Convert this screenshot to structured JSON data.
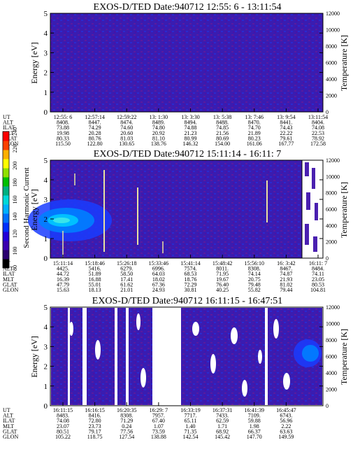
{
  "colorbar": {
    "label": "Second Harmonic Current",
    "ticks": [
      "80",
      "100",
      "120",
      "140",
      "160",
      "180",
      "200",
      "220",
      "240"
    ],
    "colors": [
      "#000000",
      "#2a0070",
      "#3a00b0",
      "#2200d8",
      "#0030ff",
      "#0070ff",
      "#00b0ff",
      "#00d8d8",
      "#00b080",
      "#00c000",
      "#90e000",
      "#ffff00",
      "#ffb000",
      "#ff4000",
      "#ff0000"
    ]
  },
  "chart_data": [
    {
      "type": "heatmap",
      "title": "EXOS-D/TED   Date:940712  12:55: 6 - 13:11:54",
      "ylabel": "Energy [eV]",
      "y2label": "Temperature [K]",
      "ylim": [
        0,
        5
      ],
      "y2lim": [
        0,
        12000
      ],
      "yticks": [
        "0",
        "1",
        "2",
        "3",
        "4",
        "5"
      ],
      "y2ticks": [
        "0",
        "2000",
        "4000",
        "6000",
        "8000",
        "10000",
        "12000"
      ],
      "background": "#3a1cb0",
      "table": {
        "rows": [
          "UT",
          "ALT",
          "ILAT",
          "MLT",
          "GLAT",
          "GLON"
        ],
        "columns": [
          [
            "12:55: 6",
            "8408.",
            "73.88",
            "19.98",
            "80.33",
            "115.50"
          ],
          [
            "12:57:14",
            "8447.",
            "74.29",
            "20.28",
            "80.76",
            "122.80"
          ],
          [
            "12:59:22",
            "8474.",
            "74.60",
            "20.60",
            "81.03",
            "130.65"
          ],
          [
            "13: 1:30",
            "8489.",
            "74.80",
            "20.92",
            "81.10",
            "138.76"
          ],
          [
            "13: 3:30",
            "8494.",
            "74.88",
            "21.23",
            "80.99",
            "146.32"
          ],
          [
            "13: 5:38",
            "8488.",
            "74.85",
            "21.56",
            "80.69",
            "154.00"
          ],
          [
            "13: 7:46",
            "8470.",
            "74.70",
            "21.89",
            "80.23",
            "161.06"
          ],
          [
            "13: 9:54",
            "8441.",
            "74.43",
            "22.22",
            "79.61",
            "167.77"
          ],
          [
            "13:11:54",
            "8404.",
            "74.08",
            "22.53",
            "78.92",
            "172.58"
          ]
        ]
      }
    },
    {
      "type": "heatmap",
      "title": "EXOS-D/TED   Date:940712  15:11:14 - 16:11: 7",
      "ylabel": "Energy [eV]",
      "y2label": "Temperature [K]",
      "ylim": [
        0,
        5
      ],
      "y2lim": [
        0,
        12000
      ],
      "yticks": [
        "0",
        "1",
        "2",
        "3",
        "4",
        "5"
      ],
      "y2ticks": [
        "0",
        "2000",
        "4000",
        "6000",
        "8000",
        "10000",
        "12000"
      ],
      "background": "#3a1cb0",
      "table": {
        "rows": [
          "UT",
          "ALT",
          "ILAT",
          "MLT",
          "GLAT",
          "GLON"
        ],
        "columns": [
          [
            "15:11:14",
            "4425.",
            "44.72",
            "16.39",
            "47.79",
            "15.63"
          ],
          [
            "15:18:46",
            "5416.",
            "51.89",
            "16.88",
            "55.01",
            "18.13"
          ],
          [
            "15:26:18",
            "6279.",
            "58.50",
            "17.41",
            "61.62",
            "21.01"
          ],
          [
            "15:33:46",
            "6996.",
            "64.03",
            "18.02",
            "67.36",
            "24.93"
          ],
          [
            "15:41:14",
            "7574.",
            "68.53",
            "18.76",
            "72.29",
            "30.81"
          ],
          [
            "15:48:42",
            "8011.",
            "71.95",
            "19.67",
            "76.40",
            "40.25"
          ],
          [
            "15:56:10",
            "8308.",
            "74.14",
            "20.75",
            "79.48",
            "55.82"
          ],
          [
            "16: 3:42",
            "8467.",
            "74.87",
            "21.93",
            "81.02",
            "79.44"
          ],
          [
            "16:11: 7",
            "8484.",
            "74.11",
            "23.05",
            "80.53",
            "104.81"
          ]
        ]
      }
    },
    {
      "type": "heatmap",
      "title": "EXOS-D/TED   Date:940712  16:11:15 - 16:47:51",
      "ylabel": "Energy [eV]",
      "y2label": "Temperature [K]",
      "ylim": [
        0,
        5
      ],
      "y2lim": [
        0,
        12000
      ],
      "yticks": [
        "0",
        "1",
        "2",
        "3",
        "4",
        "5"
      ],
      "y2ticks": [
        "0",
        "2000",
        "4000",
        "6000",
        "8000",
        "10000",
        "12000"
      ],
      "background": "#3a1cb0",
      "table": {
        "rows": [
          "UT",
          "ALT",
          "ILAT",
          "MLT",
          "GLAT",
          "GLON"
        ],
        "columns": [
          [
            "16:11:15",
            "8483.",
            "74.08",
            "23.07",
            "80.51",
            "105.22"
          ],
          [
            "16:16:15",
            "8416.",
            "72.80",
            "23.73",
            "79.17",
            "118.75"
          ],
          [
            "16:20:35",
            "8308.",
            "71.29",
            "0.24",
            "77.56",
            "127.54"
          ],
          [
            "16:29: 7",
            "7957.",
            "67.40",
            "1.07",
            "73.59",
            "138.88"
          ],
          [
            "16:33:19",
            "7717.",
            "65.11",
            "1.40",
            "71.35",
            "142.54"
          ],
          [
            "16:37:31",
            "7433.",
            "62.59",
            "1.71",
            "68.92",
            "145.42"
          ],
          [
            "16:41:39",
            "7109.",
            "59.88",
            "1.98",
            "66.37",
            "147.70"
          ],
          [
            "16:45:47",
            "6743.",
            "56.96",
            "2.22",
            "63.63",
            "149.59"
          ]
        ]
      }
    }
  ]
}
